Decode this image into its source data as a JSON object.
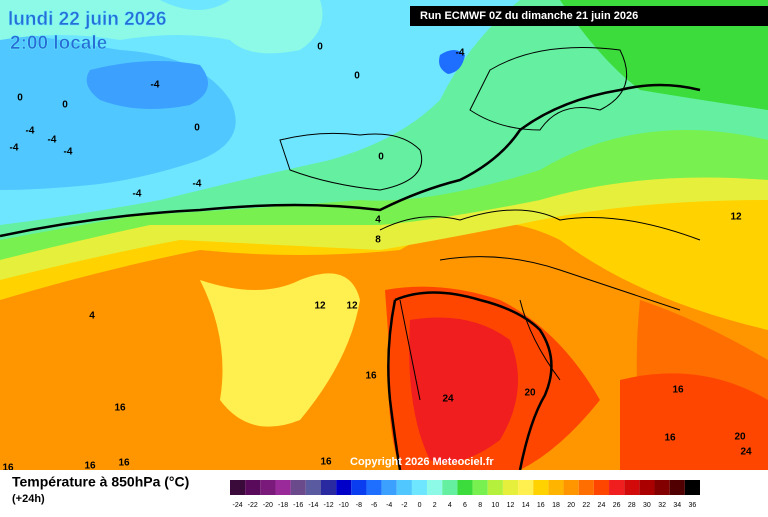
{
  "header": {
    "date": "lundi 22 juin 2026",
    "time": "2:00 locale",
    "run": "Run ECMWF 0Z du dimanche 21 juin 2026"
  },
  "copyright": "Copyright 2026 Meteociel.fr",
  "legend": {
    "title": "Température à 850hPa (°C)",
    "lead": "(+24h)",
    "values": [
      -24,
      -22,
      -20,
      -18,
      -16,
      -14,
      -12,
      -10,
      -8,
      -6,
      -4,
      -2,
      0,
      2,
      4,
      6,
      8,
      10,
      12,
      14,
      16,
      18,
      20,
      22,
      24,
      26,
      28,
      30,
      32,
      34,
      36
    ],
    "colors": [
      "#3a0a3a",
      "#5a0a5a",
      "#7a1a7a",
      "#9a2a9a",
      "#6a4a8a",
      "#5a5aa0",
      "#2a2aa0",
      "#0000c8",
      "#0a3cf0",
      "#1e6eff",
      "#3ca0ff",
      "#50c8ff",
      "#6ee6ff",
      "#8cfae6",
      "#64f0a0",
      "#3cdc3c",
      "#78f050",
      "#b4f03c",
      "#e6f03c",
      "#fff050",
      "#ffd200",
      "#ffb400",
      "#ff9600",
      "#ff6e00",
      "#ff4600",
      "#f01e1e",
      "#d20a0a",
      "#aa0000",
      "#820000",
      "#500000",
      "#000000"
    ]
  },
  "contour_labels": [
    0,
    0,
    0,
    0,
    -4,
    -4,
    -4,
    -4,
    -4,
    -4,
    0,
    0,
    -4,
    -4,
    4,
    8,
    12,
    4,
    12,
    12,
    16,
    16,
    24,
    20,
    16,
    16,
    20,
    24,
    16,
    16,
    16,
    16
  ]
}
